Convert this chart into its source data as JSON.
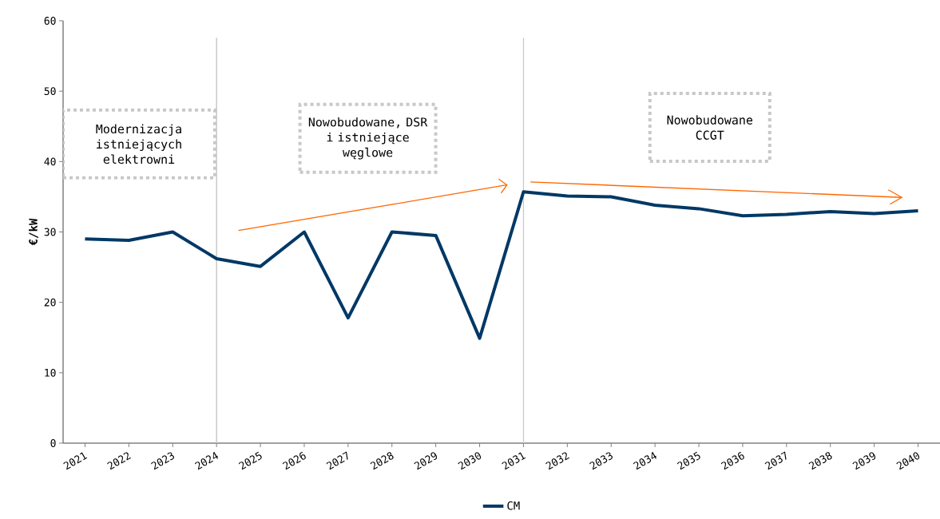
{
  "chart_data": {
    "type": "line",
    "categories": [
      "2021",
      "2022",
      "2023",
      "2024",
      "2025",
      "2026",
      "2027",
      "2028",
      "2029",
      "2030",
      "2031",
      "2032",
      "2033",
      "2034",
      "2035",
      "2036",
      "2037",
      "2038",
      "2039",
      "2040"
    ],
    "series": [
      {
        "name": "CM",
        "color": "#003865",
        "values": [
          29.0,
          28.8,
          30.0,
          26.2,
          25.1,
          30.0,
          17.8,
          30.0,
          29.5,
          14.9,
          35.7,
          35.1,
          35.0,
          33.8,
          33.3,
          32.3,
          32.5,
          32.9,
          32.6,
          33.0
        ]
      }
    ],
    "ylabel": "€/kW",
    "ylim": [
      0,
      60
    ],
    "yticks": [
      0,
      10,
      20,
      30,
      40,
      50,
      60
    ],
    "ref_lines": [
      {
        "axis": "x",
        "value": "2024",
        "color": "#c8c8c8"
      },
      {
        "axis": "x",
        "value": "2031",
        "color": "#c8c8c8"
      }
    ],
    "annotations": [
      "Modernizacja istniejących elektrowni",
      "Nowobudowane, DSR i istniejące węglowe",
      "Nowobudowane CCGT"
    ],
    "legend": "bottom",
    "grid": false,
    "marker": "none",
    "line_style": "solid"
  }
}
